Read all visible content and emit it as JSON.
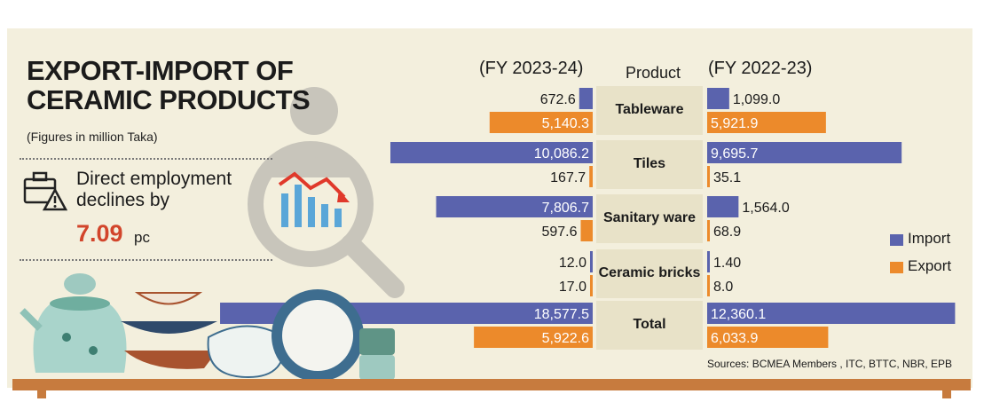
{
  "title_line1": "EXPORT-IMPORT OF",
  "title_line2": "CERAMIC PRODUCTS",
  "units_note": "(Figures in million Taka)",
  "employment": {
    "text_line1": "Direct employment",
    "text_line2": "declines by",
    "value": "7.09",
    "unit": "pc"
  },
  "left_header": "(FY 2023-24)",
  "product_header": "Product",
  "right_header": "(FY 2022-23)",
  "legend": {
    "import": "Import",
    "export": "Export"
  },
  "sources": "Sources: BCMEA Members , ITC, BTTC, NBR, EPB",
  "colors": {
    "import": "#5a63ad",
    "export": "#ec8a2b",
    "background": "#f3efdd"
  },
  "chart_data": {
    "type": "bar",
    "categories": [
      "Tableware",
      "Tiles",
      "Sanitary ware",
      "Ceramic bricks",
      "Total"
    ],
    "periods": [
      "(FY 2023-24)",
      "(FY 2022-23)"
    ],
    "series": [
      {
        "name": "Import",
        "period": "(FY 2023-24)",
        "values": [
          672.6,
          10086.2,
          7806.7,
          12.0,
          18577.5
        ],
        "labels": [
          "672.6",
          "10,086.2",
          "7,806.7",
          "12.0",
          "18,577.5"
        ]
      },
      {
        "name": "Export",
        "period": "(FY 2023-24)",
        "values": [
          5140.3,
          167.7,
          597.6,
          17.0,
          5922.6
        ],
        "labels": [
          "5,140.3",
          "167.7",
          "597.6",
          "17.0",
          "5,922.6"
        ]
      },
      {
        "name": "Import",
        "period": "(FY 2022-23)",
        "values": [
          1099.0,
          9695.7,
          1564.0,
          1.4,
          12360.1
        ],
        "labels": [
          "1,099.0",
          "9,695.7",
          "1,564.0",
          "1.40",
          "12,360.1"
        ]
      },
      {
        "name": "Export",
        "period": "(FY 2022-23)",
        "values": [
          5921.9,
          35.1,
          68.9,
          8.0,
          6033.9
        ],
        "labels": [
          "5,921.9",
          "35.1",
          "68.9",
          "8.0",
          "6,033.9"
        ]
      }
    ]
  }
}
